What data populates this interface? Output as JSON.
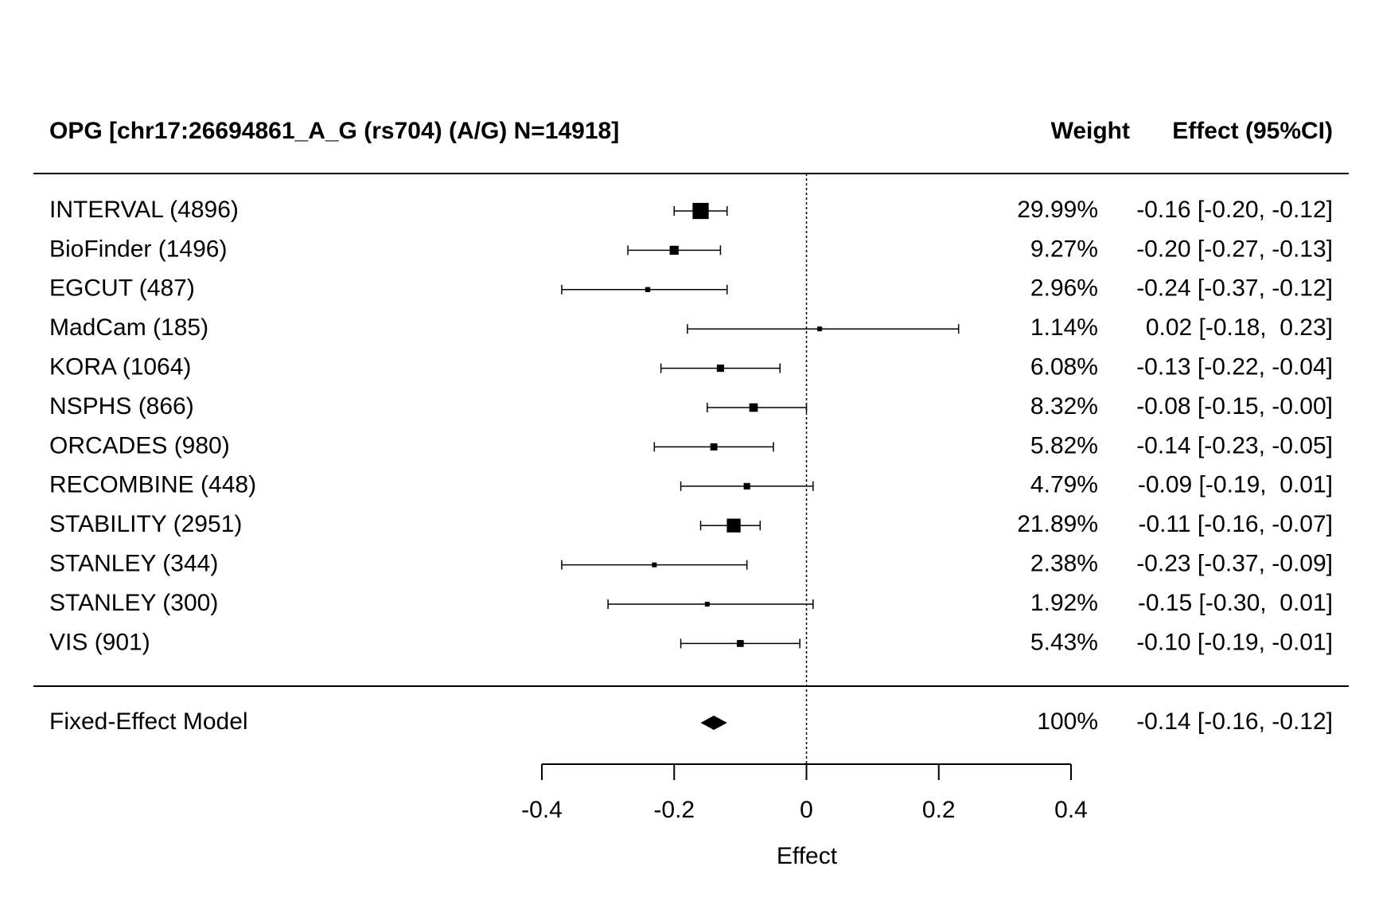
{
  "chart_data": {
    "type": "forest",
    "title": "OPG [chr17:26694861_A_G (rs704) (A/G) N=14918]",
    "columns": [
      "Weight",
      "Effect (95%CI)"
    ],
    "studies": [
      {
        "name": "INTERVAL (4896)",
        "estimate": -0.16,
        "lower": -0.2,
        "upper": -0.12,
        "weight": 29.99,
        "weight_label": "29.99%",
        "ci_label": "-0.16 [-0.20, -0.12]"
      },
      {
        "name": "BioFinder (1496)",
        "estimate": -0.2,
        "lower": -0.27,
        "upper": -0.13,
        "weight": 9.27,
        "weight_label": "9.27%",
        "ci_label": "-0.20 [-0.27, -0.13]"
      },
      {
        "name": "EGCUT (487)",
        "estimate": -0.24,
        "lower": -0.37,
        "upper": -0.12,
        "weight": 2.96,
        "weight_label": "2.96%",
        "ci_label": "-0.24 [-0.37, -0.12]"
      },
      {
        "name": "MadCam (185)",
        "estimate": 0.02,
        "lower": -0.18,
        "upper": 0.23,
        "weight": 1.14,
        "weight_label": "1.14%",
        "ci_label": "0.02 [-0.18,  0.23]"
      },
      {
        "name": "KORA (1064)",
        "estimate": -0.13,
        "lower": -0.22,
        "upper": -0.04,
        "weight": 6.08,
        "weight_label": "6.08%",
        "ci_label": "-0.13 [-0.22, -0.04]"
      },
      {
        "name": "NSPHS (866)",
        "estimate": -0.08,
        "lower": -0.15,
        "upper": -0.0,
        "weight": 8.32,
        "weight_label": "8.32%",
        "ci_label": "-0.08 [-0.15, -0.00]"
      },
      {
        "name": "ORCADES (980)",
        "estimate": -0.14,
        "lower": -0.23,
        "upper": -0.05,
        "weight": 5.82,
        "weight_label": "5.82%",
        "ci_label": "-0.14 [-0.23, -0.05]"
      },
      {
        "name": "RECOMBINE (448)",
        "estimate": -0.09,
        "lower": -0.19,
        "upper": 0.01,
        "weight": 4.79,
        "weight_label": "4.79%",
        "ci_label": "-0.09 [-0.19,  0.01]"
      },
      {
        "name": "STABILITY (2951)",
        "estimate": -0.11,
        "lower": -0.16,
        "upper": -0.07,
        "weight": 21.89,
        "weight_label": "21.89%",
        "ci_label": "-0.11 [-0.16, -0.07]"
      },
      {
        "name": "STANLEY (344)",
        "estimate": -0.23,
        "lower": -0.37,
        "upper": -0.09,
        "weight": 2.38,
        "weight_label": "2.38%",
        "ci_label": "-0.23 [-0.37, -0.09]"
      },
      {
        "name": "STANLEY (300)",
        "estimate": -0.15,
        "lower": -0.3,
        "upper": 0.01,
        "weight": 1.92,
        "weight_label": "1.92%",
        "ci_label": "-0.15 [-0.30,  0.01]"
      },
      {
        "name": "VIS (901)",
        "estimate": -0.1,
        "lower": -0.19,
        "upper": -0.01,
        "weight": 5.43,
        "weight_label": "5.43%",
        "ci_label": "-0.10 [-0.19, -0.01]"
      }
    ],
    "summary": {
      "name": "Fixed-Effect Model",
      "estimate": -0.14,
      "lower": -0.16,
      "upper": -0.12,
      "weight": 100,
      "weight_label": "100%",
      "ci_label": "-0.14 [-0.16, -0.12]"
    },
    "xlabel": "Effect",
    "xlim": [
      -0.4,
      0.4
    ],
    "xticks": [
      -0.4,
      -0.2,
      0,
      0.2,
      0.4
    ],
    "reference_line": 0,
    "color": "#000000"
  }
}
